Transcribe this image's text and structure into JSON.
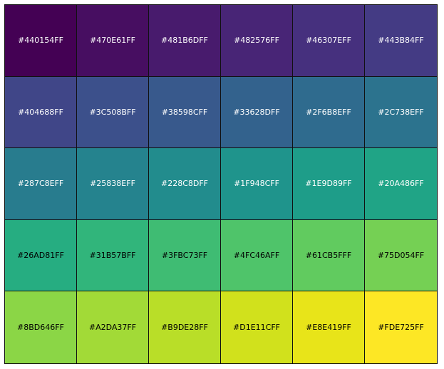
{
  "swatches": [
    [
      {
        "label": "#440154FF",
        "color": "#440154"
      },
      {
        "label": "#470E61FF",
        "color": "#470E61"
      },
      {
        "label": "#481B6DFF",
        "color": "#481B6D"
      },
      {
        "label": "#482576FF",
        "color": "#482576"
      },
      {
        "label": "#46307EFF",
        "color": "#46307E"
      },
      {
        "label": "#443B84FF",
        "color": "#443B84"
      }
    ],
    [
      {
        "label": "#404688FF",
        "color": "#404688"
      },
      {
        "label": "#3C508BFF",
        "color": "#3C508B"
      },
      {
        "label": "#38598CFF",
        "color": "#38598C"
      },
      {
        "label": "#33628DFF",
        "color": "#33628D"
      },
      {
        "label": "#2F6B8EFF",
        "color": "#2F6B8E"
      },
      {
        "label": "#2C738EFF",
        "color": "#2C738E"
      }
    ],
    [
      {
        "label": "#287C8EFF",
        "color": "#287C8E"
      },
      {
        "label": "#25838EFF",
        "color": "#25838E"
      },
      {
        "label": "#228C8DFF",
        "color": "#228C8D"
      },
      {
        "label": "#1F948CFF",
        "color": "#1F948C"
      },
      {
        "label": "#1E9D89FF",
        "color": "#1E9D89"
      },
      {
        "label": "#20A486FF",
        "color": "#20A486"
      }
    ],
    [
      {
        "label": "#26AD81FF",
        "color": "#26AD81"
      },
      {
        "label": "#31B57BFF",
        "color": "#31B57B"
      },
      {
        "label": "#3FBC73FF",
        "color": "#3FBC73"
      },
      {
        "label": "#4FC46AFF",
        "color": "#4FC46A"
      },
      {
        "label": "#61CB5FFF",
        "color": "#61CB5F"
      },
      {
        "label": "#75D054FF",
        "color": "#75D054"
      }
    ],
    [
      {
        "label": "#8BD646FF",
        "color": "#8BD646"
      },
      {
        "label": "#A2DA37FF",
        "color": "#A2DA37"
      },
      {
        "label": "#B9DE28FF",
        "color": "#B9DE28"
      },
      {
        "label": "#D1E11CFF",
        "color": "#D1E11C"
      },
      {
        "label": "#E8E419FF",
        "color": "#E8E419"
      },
      {
        "label": "#FDE725FF",
        "color": "#FDE725"
      }
    ]
  ]
}
